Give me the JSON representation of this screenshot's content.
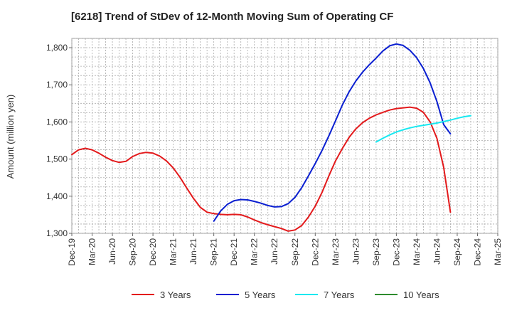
{
  "chart_data": {
    "type": "line",
    "title": "[6218]  Trend of StDev of 12-Month Moving Sum of Operating CF",
    "ylabel": "Amount (million yen)",
    "xlabel": "",
    "ylim": [
      1300,
      1825
    ],
    "yticks": [
      1300,
      1400,
      1500,
      1600,
      1700,
      1800
    ],
    "ytick_labels": [
      "1,300",
      "1,400",
      "1,500",
      "1,600",
      "1,700",
      "1,800"
    ],
    "x_start": "2019-12",
    "x_end": "2025-03",
    "xtick_labels": [
      "Dec-19",
      "Mar-20",
      "Jun-20",
      "Sep-20",
      "Dec-20",
      "Mar-21",
      "Jun-21",
      "Sep-21",
      "Dec-21",
      "Mar-22",
      "Jun-22",
      "Sep-22",
      "Dec-22",
      "Mar-23",
      "Jun-23",
      "Sep-23",
      "Dec-23",
      "Mar-24",
      "Jun-24",
      "Sep-24",
      "Dec-24",
      "Mar-25"
    ],
    "grid": true,
    "legend_position": "bottom",
    "series": [
      {
        "name": "3 Years",
        "color": "#e31a1c",
        "start": "2019-12",
        "values": [
          1512,
          1525,
          1529,
          1525,
          1516,
          1505,
          1496,
          1491,
          1494,
          1507,
          1515,
          1518,
          1516,
          1508,
          1495,
          1476,
          1451,
          1422,
          1394,
          1370,
          1357,
          1353,
          1351,
          1350,
          1351,
          1350,
          1344,
          1336,
          1329,
          1323,
          1318,
          1313,
          1306,
          1309,
          1321,
          1344,
          1373,
          1410,
          1454,
          1495,
          1528,
          1558,
          1581,
          1598,
          1610,
          1619,
          1626,
          1632,
          1636,
          1638,
          1640,
          1637,
          1626,
          1600,
          1556,
          1478,
          1357
        ]
      },
      {
        "name": "5 Years",
        "color": "#0a1fd1",
        "start": "2021-09",
        "values": [
          1333,
          1360,
          1378,
          1388,
          1391,
          1390,
          1386,
          1381,
          1375,
          1371,
          1372,
          1380,
          1397,
          1423,
          1455,
          1488,
          1523,
          1562,
          1603,
          1645,
          1681,
          1710,
          1734,
          1754,
          1772,
          1791,
          1805,
          1810,
          1806,
          1793,
          1773,
          1744,
          1705,
          1655,
          1593,
          1568
        ]
      },
      {
        "name": "7 Years",
        "color": "#18e8f0",
        "start": "2023-09",
        "values": [
          1546,
          1556,
          1565,
          1573,
          1579,
          1584,
          1588,
          1591,
          1594,
          1597,
          1601,
          1605,
          1610,
          1614,
          1617
        ]
      },
      {
        "name": "10 Years",
        "color": "#2e8b2e",
        "start": "2019-12",
        "values": []
      }
    ]
  }
}
